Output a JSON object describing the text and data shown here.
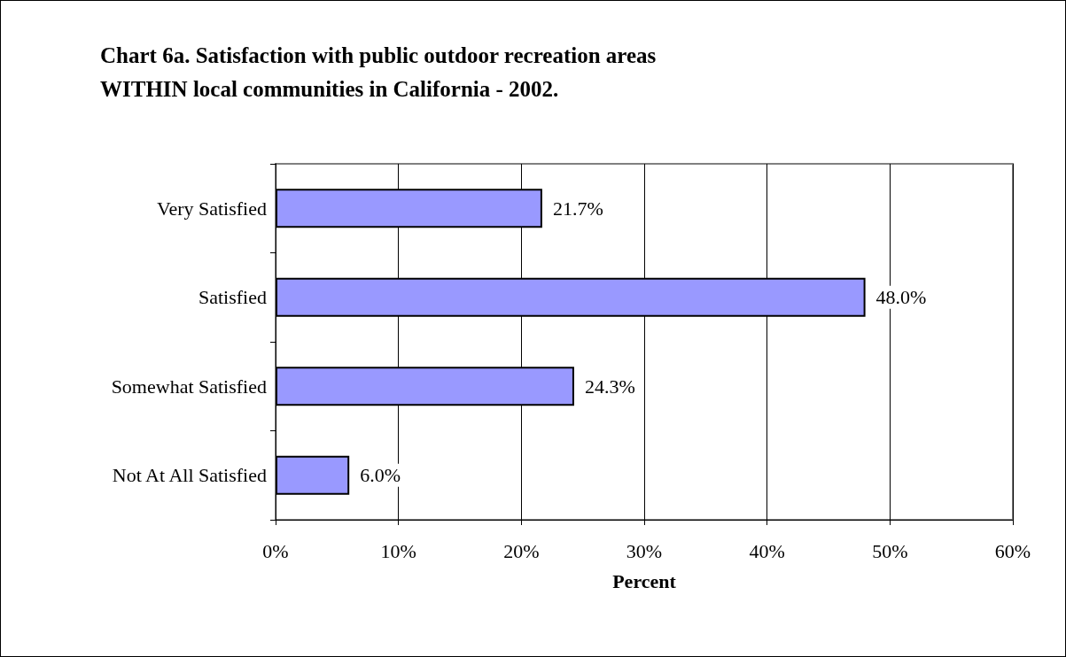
{
  "chart_data": {
    "type": "bar",
    "orientation": "horizontal",
    "title": "Chart 6a. Satisfaction with public outdoor recreation areas WITHIN local communities in California - 2002.",
    "xlabel": "Percent",
    "categories": [
      "Very Satisfied",
      "Satisfied",
      "Somewhat Satisfied",
      "Not At All Satisfied"
    ],
    "values": [
      21.7,
      48.0,
      24.3,
      6.0
    ],
    "value_labels": [
      "21.7%",
      "48.0%",
      "24.3%",
      "6.0%"
    ],
    "color": "#9999ff",
    "xlim": [
      0,
      60
    ],
    "xticks": [
      {
        "value": 0,
        "label": "0%"
      },
      {
        "value": 10,
        "label": "10%"
      },
      {
        "value": 20,
        "label": "20%"
      },
      {
        "value": 30,
        "label": "30%"
      },
      {
        "value": 40,
        "label": "40%"
      },
      {
        "value": 50,
        "label": "50%"
      },
      {
        "value": 60,
        "label": "60%"
      }
    ],
    "grid": "x"
  }
}
